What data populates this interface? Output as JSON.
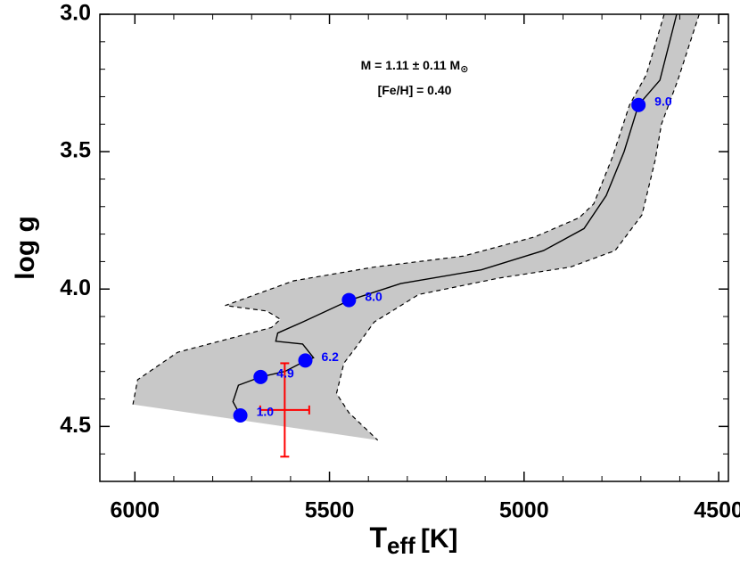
{
  "chart_data": {
    "type": "line",
    "ylabel": "log g",
    "xlabel": {
      "main": "T",
      "sub": "eff",
      "unit": "[K]"
    },
    "xlim": [
      6090,
      4475
    ],
    "ylim": [
      3.0,
      4.7
    ],
    "xticks": [
      6000,
      5500,
      5000,
      4500
    ],
    "yticks": [
      {
        "value": 3.0,
        "label": "3.0"
      },
      3.5,
      {
        "value": 4.0,
        "label": "4.0"
      },
      4.5
    ],
    "xticks_minor": [
      5900,
      5800,
      5700,
      5600,
      5400,
      5300,
      5200,
      5100,
      4900,
      4800,
      4700,
      4600
    ],
    "yticks_minor": [
      3.1,
      3.2,
      3.3,
      3.4,
      3.6,
      3.7,
      3.8,
      3.9,
      4.1,
      4.2,
      4.3,
      4.4,
      4.6
    ],
    "annotations": [
      {
        "text": "M = 1.11 ± 0.11 M",
        "sub": "⊙"
      },
      {
        "text": "[Fe/H] = 0.40"
      }
    ],
    "band": {
      "color": "#c8c8c8",
      "upper": {
        "x": [
          4640,
          4686,
          4729,
          4773,
          4821,
          4858,
          4972,
          5156,
          5385,
          5592,
          5768,
          5661,
          5626,
          5649,
          5890,
          5993,
          6005
        ],
        "y": [
          3.0,
          3.22,
          3.33,
          3.52,
          3.69,
          3.74,
          3.81,
          3.88,
          3.92,
          3.97,
          4.06,
          4.08,
          4.11,
          4.14,
          4.23,
          4.33,
          4.42
        ]
      },
      "lower": {
        "x": [
          4550,
          4605,
          4647,
          4663,
          4697,
          4766,
          4881,
          5064,
          5271,
          5385,
          5431,
          5463,
          5482,
          5450,
          5376
        ],
        "y": [
          3.0,
          3.24,
          3.4,
          3.53,
          3.73,
          3.86,
          3.92,
          3.96,
          4.02,
          4.12,
          4.21,
          4.27,
          4.38,
          4.45,
          4.55
        ]
      }
    },
    "track": {
      "color": "#000000",
      "x": [
        4608,
        4651,
        4706,
        4743,
        4789,
        4846,
        4950,
        5110,
        5317,
        5447,
        5569,
        5633,
        5638,
        5569,
        5541,
        5560,
        5615,
        5677,
        5734,
        5748,
        5729
      ],
      "y": [
        3.0,
        3.24,
        3.33,
        3.5,
        3.66,
        3.78,
        3.86,
        3.93,
        3.98,
        4.04,
        4.12,
        4.16,
        4.19,
        4.2,
        4.25,
        4.26,
        4.3,
        4.32,
        4.35,
        4.41,
        4.46
      ]
    },
    "ages": {
      "color": "#0000ff",
      "x": [
        4706,
        5450,
        5562,
        5677,
        5729
      ],
      "y": [
        3.33,
        4.04,
        4.26,
        4.32,
        4.46
      ],
      "labels": [
        "9.0",
        "8.0",
        "6.2",
        "4.9",
        "1.0"
      ]
    },
    "star": {
      "color": "#ff0000",
      "x": 5615,
      "y": 4.44,
      "xerr": 63,
      "yerr": 0.17
    }
  }
}
